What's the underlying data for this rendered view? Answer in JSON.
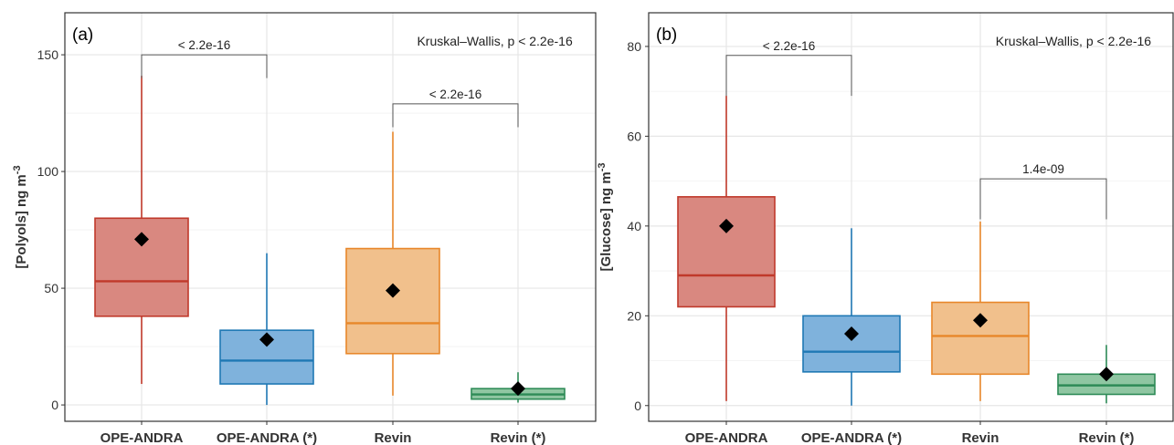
{
  "chart_data": [
    {
      "type": "box",
      "panel_label": "(a)",
      "ylabel_main": "[Polyols] ng m",
      "ylabel_sup": "-3",
      "annotation": "Kruskal–Wallis, p < 2.2e-16",
      "ylim": [
        -7,
        168
      ],
      "yticks": [
        0,
        50,
        100,
        150
      ],
      "grid": true,
      "categories": [
        "OPE-ANDRA",
        "OPE-ANDRA (*)",
        "Revin",
        "Revin (*)"
      ],
      "colors": [
        "#c0392b",
        "#1f78b4",
        "#e8872a",
        "#2e8b57"
      ],
      "fills": [
        "#d98880",
        "#7fb2dc",
        "#f1c08c",
        "#8fc6a2"
      ],
      "boxes": [
        {
          "min": 9,
          "q1": 38,
          "median": 53,
          "q3": 80,
          "max": 141,
          "mean": 71
        },
        {
          "min": 0,
          "q1": 9,
          "median": 19,
          "q3": 32,
          "max": 65,
          "mean": 28
        },
        {
          "min": 4,
          "q1": 22,
          "median": 35,
          "q3": 67,
          "max": 117,
          "mean": 49
        },
        {
          "min": 1,
          "q1": 2.5,
          "median": 4.5,
          "q3": 7,
          "max": 14,
          "mean": 7
        }
      ],
      "comparisons": [
        {
          "from": 0,
          "to": 1,
          "y": 150,
          "drop": 140,
          "label": "< 2.2e-16"
        },
        {
          "from": 2,
          "to": 3,
          "y": 129,
          "drop": 119,
          "label": "< 2.2e-16"
        }
      ]
    },
    {
      "type": "box",
      "panel_label": "(b)",
      "ylabel_main": "[Glucose] ng m",
      "ylabel_sup": "-3",
      "annotation": "Kruskal–Wallis, p < 2.2e-16",
      "ylim": [
        -3.5,
        87.5
      ],
      "yticks": [
        0,
        20,
        40,
        60,
        80
      ],
      "grid": true,
      "categories": [
        "OPE-ANDRA",
        "OPE-ANDRA (*)",
        "Revin",
        "Revin (*)"
      ],
      "colors": [
        "#c0392b",
        "#1f78b4",
        "#e8872a",
        "#2e8b57"
      ],
      "fills": [
        "#d98880",
        "#7fb2dc",
        "#f1c08c",
        "#8fc6a2"
      ],
      "boxes": [
        {
          "min": 1,
          "q1": 22,
          "median": 29,
          "q3": 46.5,
          "max": 69,
          "mean": 40
        },
        {
          "min": 0,
          "q1": 7.5,
          "median": 12,
          "q3": 20,
          "max": 39.5,
          "mean": 16
        },
        {
          "min": 1,
          "q1": 7,
          "median": 15.5,
          "q3": 23,
          "max": 41,
          "mean": 19
        },
        {
          "min": 0.5,
          "q1": 2.5,
          "median": 4.5,
          "q3": 7,
          "max": 13.5,
          "mean": 7
        }
      ],
      "comparisons": [
        {
          "from": 0,
          "to": 1,
          "y": 78,
          "drop": 69,
          "label": "< 2.2e-16"
        },
        {
          "from": 2,
          "to": 3,
          "y": 50.5,
          "drop": 41.5,
          "label": "1.4e-09"
        }
      ]
    }
  ]
}
